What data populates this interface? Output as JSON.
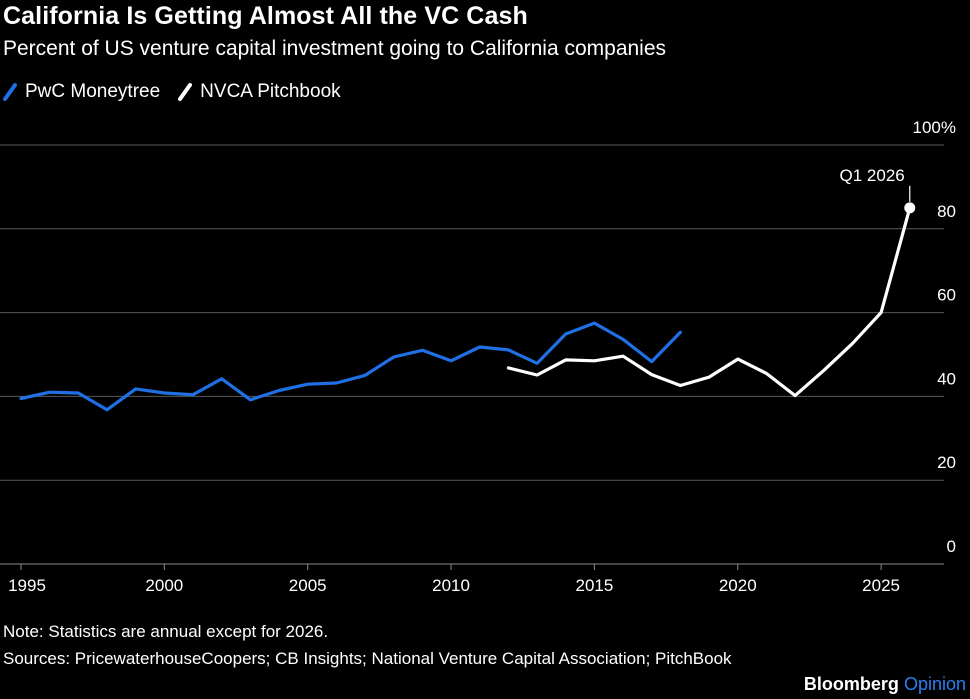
{
  "header": {
    "title": "California Is Getting Almost All the VC Cash",
    "subtitle": "Percent of US venture capital investment going to California companies"
  },
  "footer": {
    "note": "Note: Statistics are annual except for 2026.",
    "sources": "Sources: PricewaterhouseCoopers; CB Insights; National Venture Capital Association; PitchBook",
    "brand_primary": "Bloomberg",
    "brand_secondary": "Opinion"
  },
  "colors": {
    "background": "#000000",
    "pwc": "#1f6fe5",
    "nvca": "#ffffff",
    "grid": "#5a5a5a",
    "text": "#ffffff"
  },
  "chart_data": {
    "type": "line",
    "title": "California Is Getting Almost All the VC Cash",
    "subtitle": "Percent of US venture capital investment going to California companies",
    "xlabel": "",
    "ylabel": "",
    "xlim": [
      1995,
      2027.5
    ],
    "ylim": [
      0,
      100
    ],
    "x_ticks": [
      1995,
      2000,
      2005,
      2010,
      2015,
      2020,
      2025
    ],
    "x_tick_labels": [
      "1995",
      "2000",
      "2005",
      "2010",
      "2015",
      "2020",
      "2025"
    ],
    "y_ticks": [
      0,
      20,
      40,
      60,
      80,
      100
    ],
    "y_tick_labels": [
      "0",
      "20",
      "40",
      "60",
      "80",
      "100%"
    ],
    "grid": true,
    "legend": "top-left",
    "series": [
      {
        "name": "PwC Moneytree",
        "color": "#1f6fe5",
        "x": [
          1995,
          1996,
          1997,
          1998,
          1999,
          2000,
          2001,
          2002,
          2003,
          2004,
          2005,
          2006,
          2007,
          2008,
          2009,
          2010,
          2011,
          2012,
          2013,
          2014,
          2015,
          2016,
          2017,
          2018
        ],
        "values": [
          39.5,
          41,
          40.8,
          36.8,
          41.8,
          40.8,
          40.4,
          44.2,
          39.2,
          41.4,
          42.9,
          43.2,
          45,
          49.4,
          51,
          48.5,
          51.8,
          51.1,
          47.9,
          54.9,
          57.5,
          53.6,
          48.3,
          55.3
        ]
      },
      {
        "name": "NVCA Pitchbook",
        "color": "#ffffff",
        "x": [
          2012,
          2013,
          2014,
          2015,
          2016,
          2017,
          2018,
          2019,
          2020,
          2021,
          2022,
          2023,
          2024,
          2025,
          2026
        ],
        "values": [
          46.8,
          45.1,
          48.7,
          48.5,
          49.6,
          45.2,
          42.6,
          44.6,
          48.9,
          45.5,
          40.2,
          46.2,
          52.6,
          60,
          85
        ]
      }
    ],
    "annotations": [
      {
        "x": 2026,
        "y": 85,
        "text": "Q1 2026"
      }
    ]
  }
}
